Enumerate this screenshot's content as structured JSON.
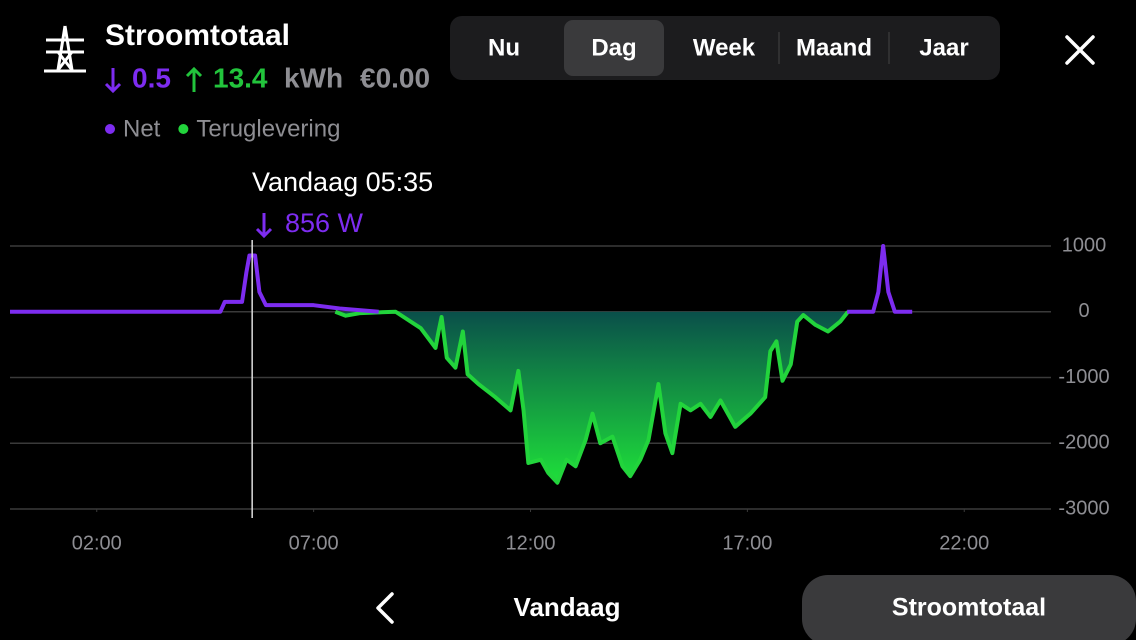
{
  "header": {
    "title": "Stroomtotaal",
    "import": 0.5,
    "export": 13.4,
    "unit": "kWh",
    "cost": "€0.00"
  },
  "tabs": {
    "items": [
      "Nu",
      "Dag",
      "Week",
      "Maand",
      "Jaar"
    ],
    "selected": 1
  },
  "footer": {
    "date": "Vandaag",
    "button": "Stroomtotaal"
  },
  "chart_data": {
    "type": "line",
    "xlim": [
      0,
      24
    ],
    "xticks": [
      {
        "value": 2,
        "label": "02:00"
      },
      {
        "value": 7,
        "label": "07:00"
      },
      {
        "value": 12,
        "label": "12:00"
      },
      {
        "value": 17,
        "label": "17:00"
      },
      {
        "value": 22,
        "label": "22:00"
      }
    ],
    "ylim": [
      -3000,
      1000
    ],
    "yticks": [
      1000,
      0,
      -1000,
      -2000,
      -3000
    ],
    "grid": true,
    "tooltip": {
      "time": "Vandaag 05:35",
      "x": 5.583,
      "value": 856,
      "value_label": "856 W"
    },
    "series": [
      {
        "name": "Net",
        "color": "#7d2cf0",
        "x": [
          0,
          4.85,
          4.95,
          5.35,
          5.45,
          5.52,
          5.65,
          5.75,
          5.9,
          7.0,
          7.6,
          8.5,
          9.0,
          19.3,
          19.9,
          20.02,
          20.13,
          20.25,
          20.4,
          20.8
        ],
        "values": [
          0,
          0,
          150,
          150,
          600,
          856,
          856,
          300,
          100,
          100,
          50,
          0,
          null,
          0,
          0,
          300,
          1000,
          300,
          0,
          0
        ]
      },
      {
        "name": "Teruglevering",
        "color": "#22d43c",
        "fill": true,
        "x": [
          7.5,
          7.74,
          8.08,
          8.89,
          9.47,
          9.81,
          9.88,
          9.95,
          10.07,
          10.27,
          10.44,
          10.55,
          10.8,
          11.19,
          11.54,
          11.72,
          11.84,
          11.95,
          12.24,
          12.41,
          12.62,
          12.83,
          13.04,
          13.27,
          13.43,
          13.61,
          13.89,
          14.12,
          14.3,
          14.53,
          14.72,
          14.95,
          15.11,
          15.27,
          15.46,
          15.69,
          15.92,
          16.15,
          16.38,
          16.72,
          17.07,
          17.41,
          17.53,
          17.67,
          17.81,
          18.0,
          18.15,
          18.29,
          18.57,
          18.86,
          19.14,
          19.32
        ],
        "values": [
          0,
          -60,
          -20,
          0,
          -250,
          -550,
          -300,
          -80,
          -700,
          -850,
          -300,
          -950,
          -1100,
          -1300,
          -1500,
          -900,
          -1500,
          -2300,
          -2250,
          -2450,
          -2600,
          -2250,
          -2350,
          -1950,
          -1550,
          -2000,
          -1900,
          -2350,
          -2500,
          -2250,
          -1950,
          -1100,
          -1850,
          -2150,
          -1400,
          -1500,
          -1400,
          -1600,
          -1350,
          -1750,
          -1550,
          -1300,
          -600,
          -450,
          -1050,
          -800,
          -150,
          -50,
          -200,
          -300,
          -150,
          0
        ]
      }
    ]
  }
}
